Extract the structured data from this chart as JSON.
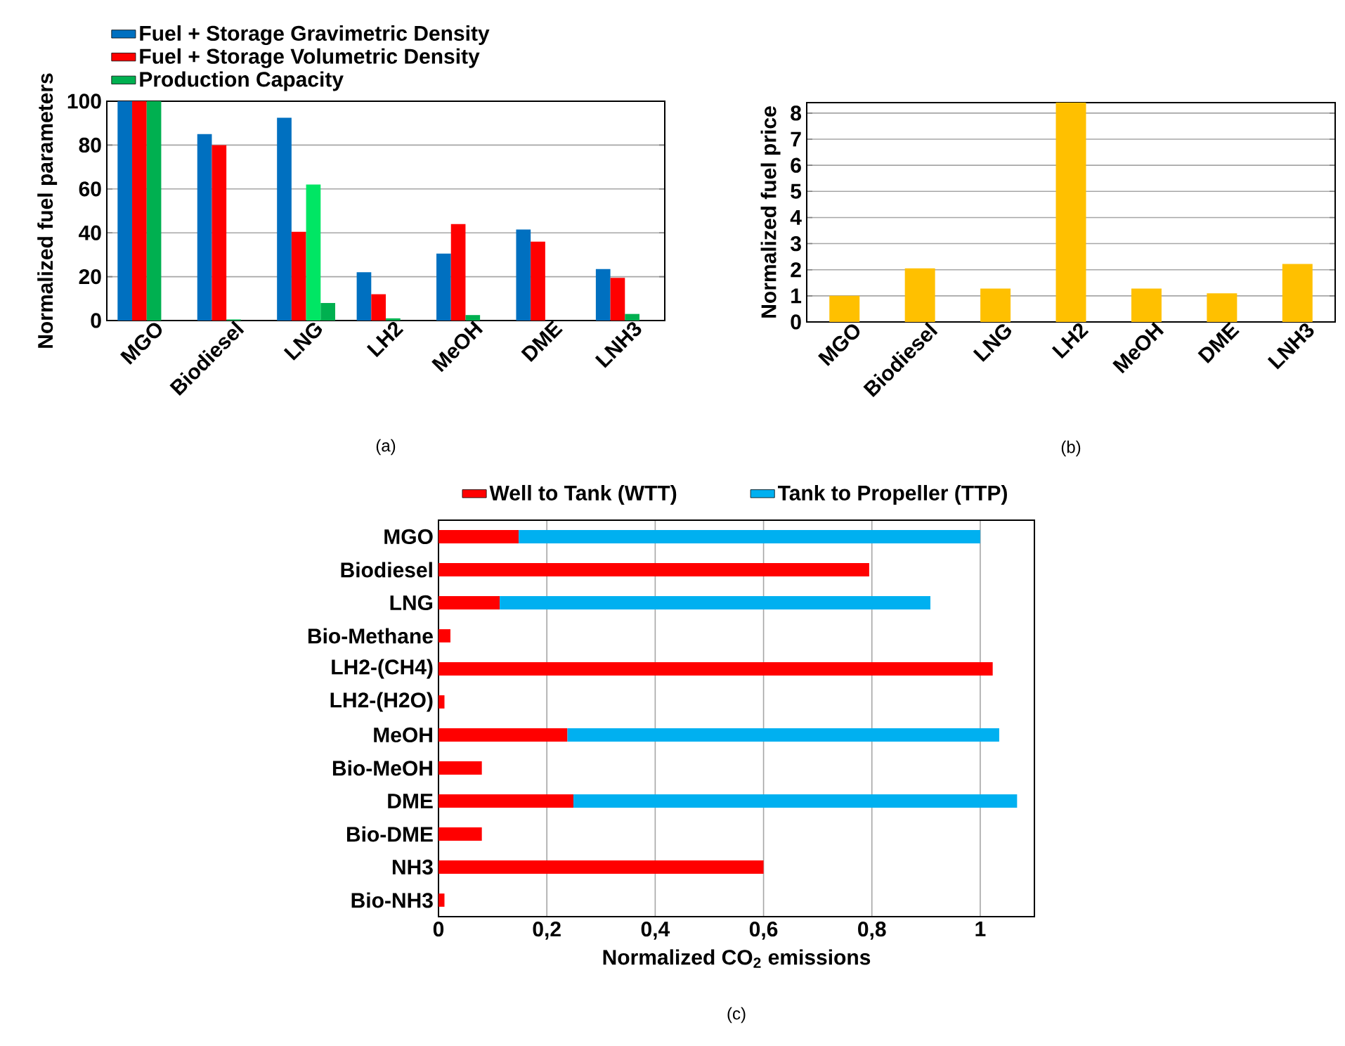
{
  "chart_data": [
    {
      "type": "bar",
      "categories": [
        "MGO",
        "Biodiesel",
        "LNG",
        "LH2",
        "MeOH",
        "DME",
        "LNH3"
      ],
      "series": [
        {
          "name": "Fuel + Storage Gravimetric Density",
          "color": "#0070c0",
          "values": [
            100,
            85,
            92.5,
            22,
            30.5,
            41.5,
            23.5
          ]
        },
        {
          "name": "Fuel + Storage Volumetric Density",
          "color": "#ff0000",
          "values": [
            100,
            80,
            40.5,
            12,
            44,
            36,
            19.5
          ]
        },
        {
          "name": "Production Capacity",
          "color": "#00b050",
          "colors": [
            "#00b050",
            "#00b050",
            "#00e664",
            "#00b050",
            "#00b050",
            "#00b050",
            "#00b050"
          ],
          "values": [
            100,
            0.5,
            62,
            1,
            2.5,
            null,
            3
          ]
        },
        {
          "color": "#00b050",
          "values": [
            null,
            null,
            8,
            null,
            null,
            null,
            null
          ]
        }
      ],
      "ylabel": "Normalized fuel parameters",
      "ylim": [
        0,
        100
      ],
      "yticks": [
        0,
        20,
        40,
        60,
        80,
        100
      ],
      "grid": "y",
      "legend": "top left",
      "annotations": [
        "(a)"
      ]
    },
    {
      "type": "bar",
      "categories": [
        "MGO",
        "Biodiesel",
        "LNG",
        "LH2",
        "MeOH",
        "DME",
        "LNH3"
      ],
      "values": [
        1.0,
        2.05,
        1.28,
        8.4,
        1.28,
        1.1,
        2.22
      ],
      "color": "#ffc000",
      "ylabel": "Normalized fuel price",
      "ylim": [
        0,
        8.4
      ],
      "yticks": [
        0,
        1,
        2,
        3,
        4,
        5,
        6,
        7,
        8
      ],
      "grid": "y",
      "annotations": [
        "(b)"
      ]
    },
    {
      "type": "bar",
      "orientation": "horizontal",
      "stacked": true,
      "categories": [
        "MGO",
        "Biodiesel",
        "LNG",
        "Bio-Methane",
        "LH2-(CH4)",
        "LH2-(H2O)",
        "MeOH",
        "Bio-MeOH",
        "DME",
        "Bio-DME",
        "NH3",
        "Bio-NH3"
      ],
      "series": [
        {
          "name": "Well to Tank (WTT)",
          "color": "#ff0000",
          "values": [
            0.148,
            0.795,
            0.113,
            0.022,
            1.023,
            0.011,
            0.238,
            0.08,
            0.249,
            0.08,
            0.6,
            0.011
          ]
        },
        {
          "name": "Tank to Propeller (TTP)",
          "color": "#00b0f0",
          "values": [
            0.852,
            null,
            0.795,
            null,
            null,
            null,
            0.797,
            null,
            0.819,
            null,
            null,
            null
          ]
        }
      ],
      "xlabel": "Normalized CO$_{2}$ emissions",
      "xlim": [
        0,
        1.1
      ],
      "xticks": [
        0,
        {
          "value": 0.2,
          "label": "0,2"
        },
        {
          "value": 0.4,
          "label": "0,4"
        },
        {
          "value": 0.6,
          "label": "0,6"
        },
        {
          "value": 0.8,
          "label": "0,8"
        },
        1
      ],
      "grid": "x",
      "legend": "top",
      "annotations": [
        "(c)"
      ]
    }
  ]
}
